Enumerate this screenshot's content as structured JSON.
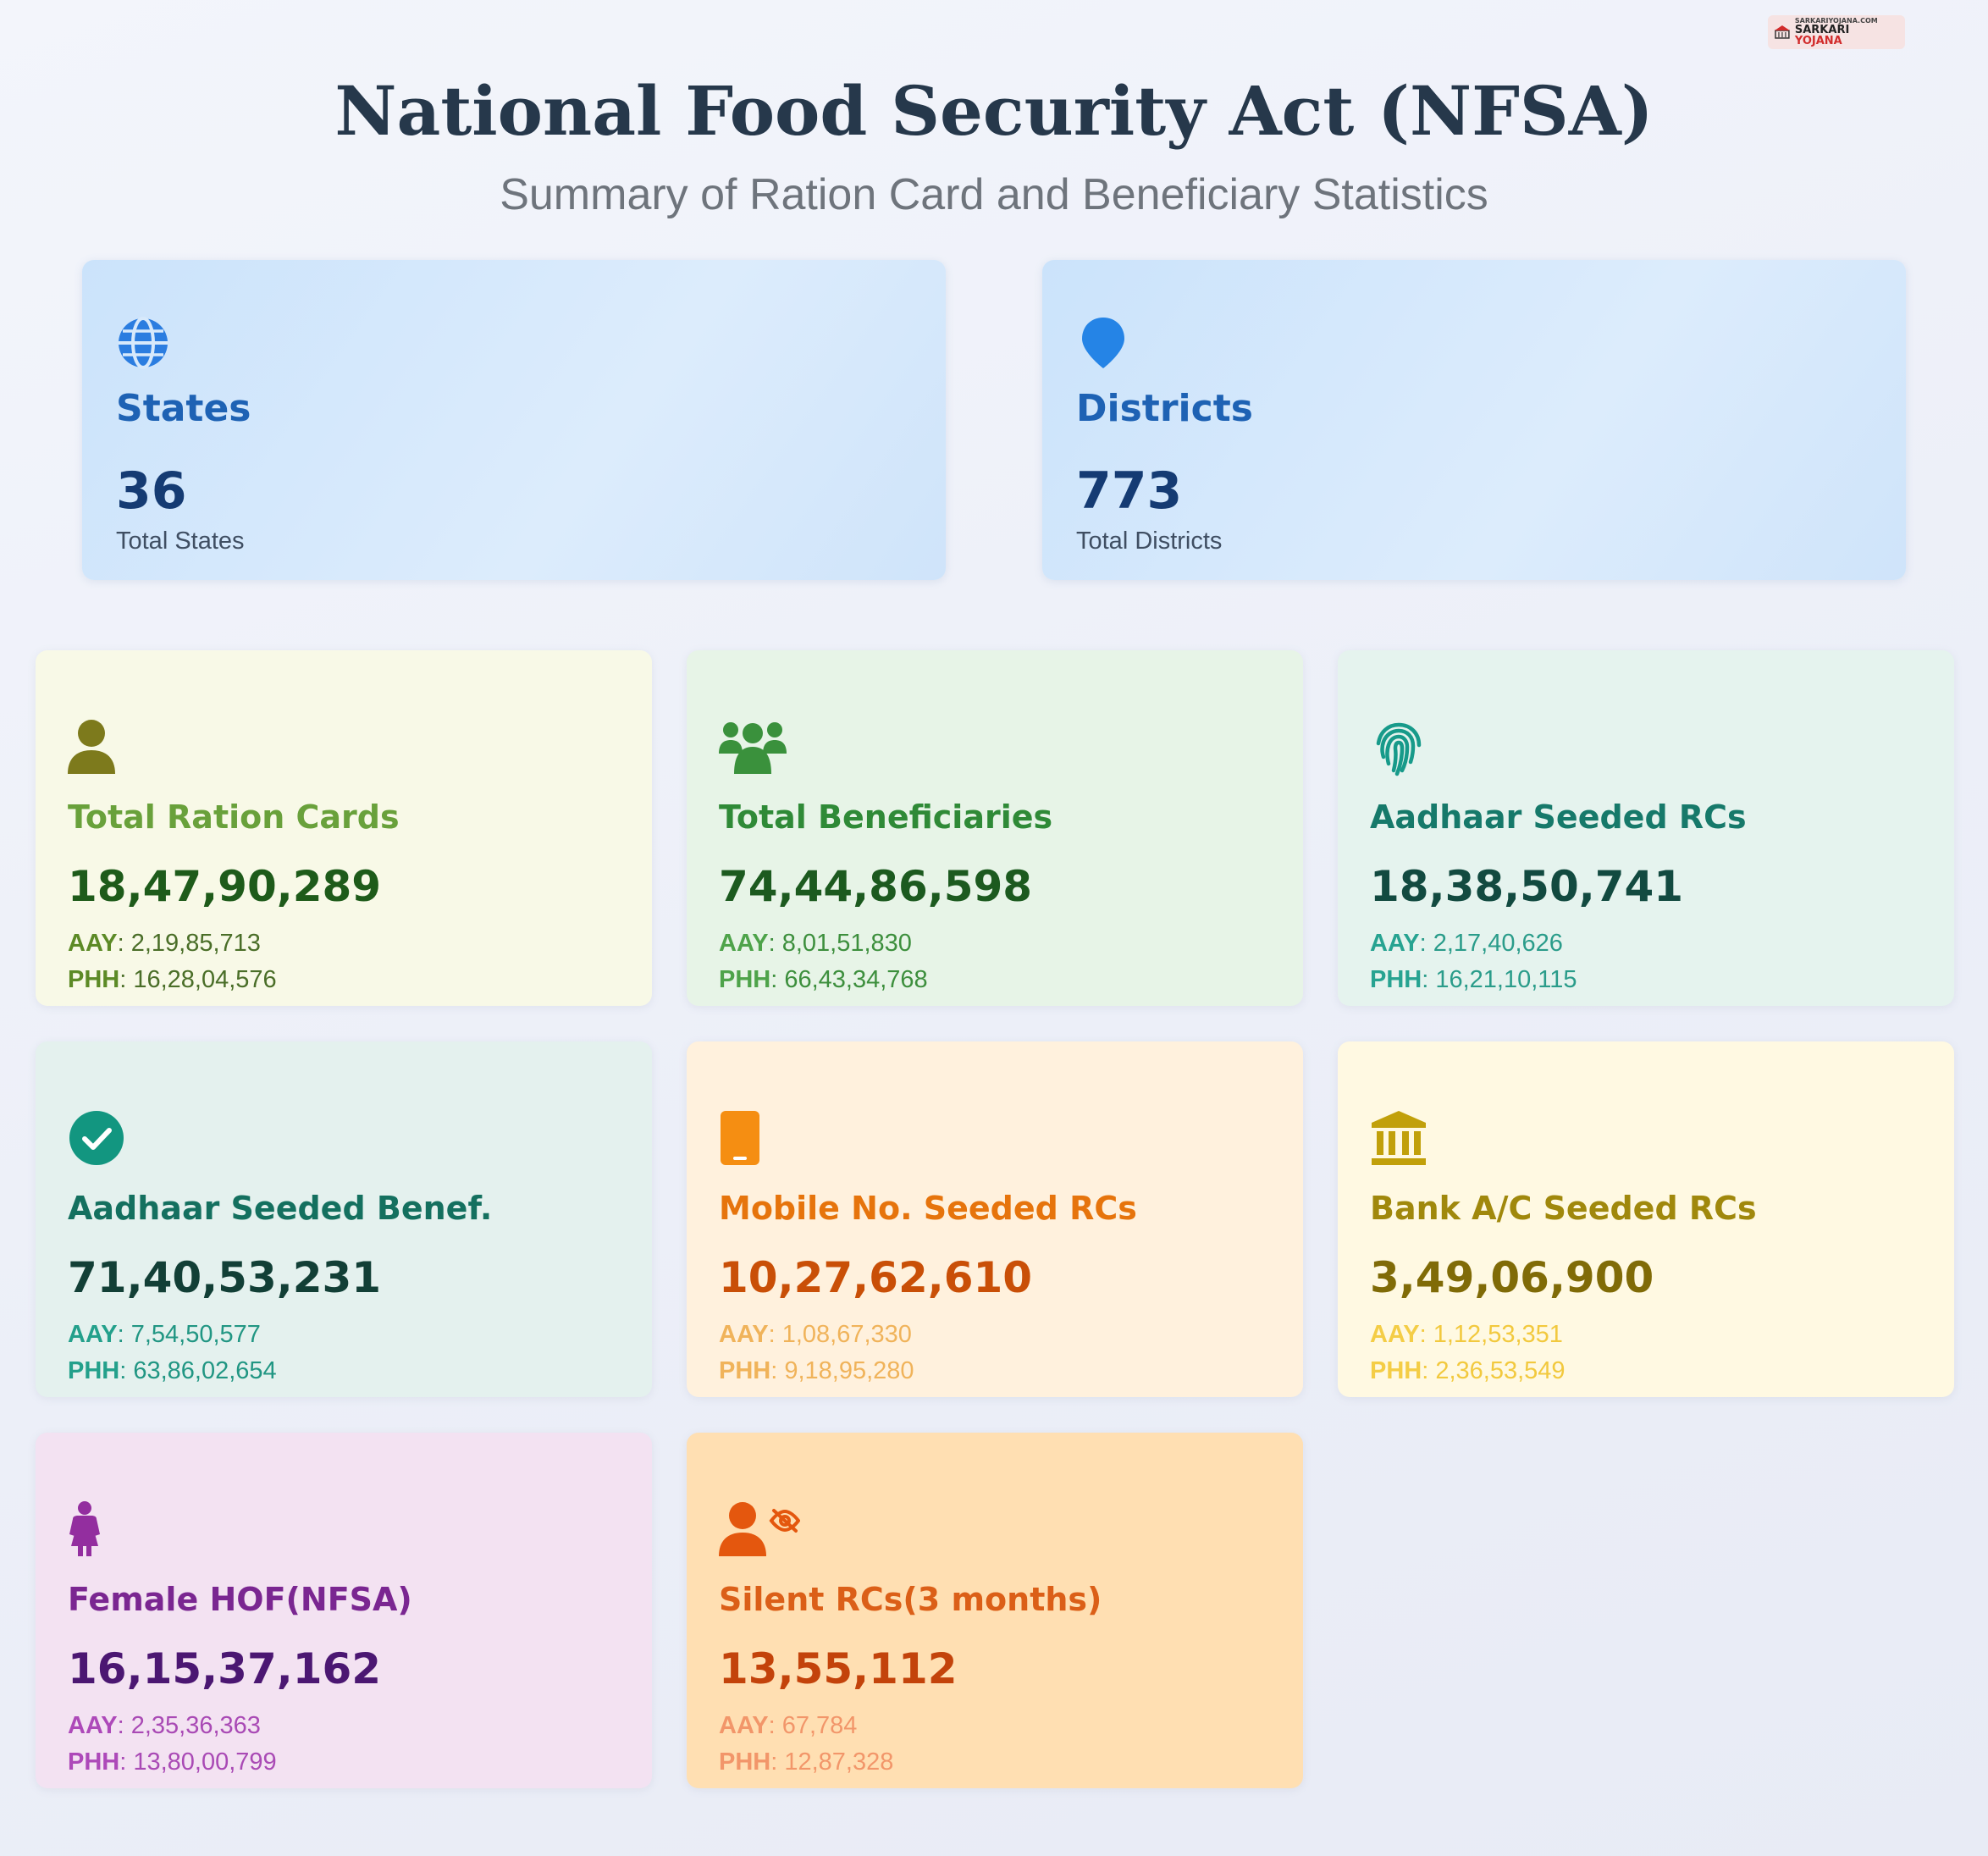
{
  "logo": {
    "small": "SARKARIYOJANA.COM",
    "brand_first": "SARKARI",
    "brand_second": "YOJANA"
  },
  "header": {
    "title": "National Food Security Act (NFSA)",
    "subtitle": "Summary of Ration Card and Beneficiary Statistics"
  },
  "summary": [
    {
      "label": "States",
      "value": "36",
      "caption": "Total States",
      "icon": "globe-icon"
    },
    {
      "label": "Districts",
      "value": "773",
      "caption": "Total Districts",
      "icon": "map-pin-icon"
    }
  ],
  "cards": [
    {
      "label": "Total Ration Cards",
      "value": "18,47,90,289",
      "aay_key": "AAY",
      "aay": "2,19,85,713",
      "phh_key": "PHH",
      "phh": "16,28,04,576",
      "icon": "user-icon",
      "colors": {
        "bg": "#f8f9e7",
        "icon": "#7d7a1c",
        "label": "#69a13b",
        "value": "#1e5b1a",
        "key": "#5c8a26",
        "num": "#4a6e28"
      }
    },
    {
      "label": "Total Beneficiaries",
      "value": "74,44,86,598",
      "aay_key": "AAY",
      "aay": "8,01,51,830",
      "phh_key": "PHH",
      "phh": "66,43,34,768",
      "icon": "users-group-icon",
      "colors": {
        "bg": "#e7f4e7",
        "icon": "#3a913c",
        "label": "#2f8a37",
        "value": "#1c5a1f",
        "key": "#4ea34a",
        "num": "#3d8f3d"
      }
    },
    {
      "label": "Aadhaar Seeded RCs",
      "value": "18,38,50,741",
      "aay_key": "AAY",
      "aay": "2,17,40,626",
      "phh_key": "PHH",
      "phh": "16,21,10,115",
      "icon": "fingerprint-icon",
      "colors": {
        "bg": "#e5f3ee",
        "icon": "#179a8a",
        "label": "#16796a",
        "value": "#124a40",
        "key": "#27a391",
        "num": "#2a9c8a"
      }
    },
    {
      "label": "Aadhaar Seeded Benef.",
      "value": "71,40,53,231",
      "aay_key": "AAY",
      "aay": "7,54,50,577",
      "phh_key": "PHH",
      "phh": "63,86,02,654",
      "icon": "check-circle-icon",
      "colors": {
        "bg": "#e4f1ee",
        "icon": "#129680",
        "label": "#14705f",
        "value": "#123f36",
        "key": "#23a08b",
        "num": "#219683"
      }
    },
    {
      "label": "Mobile No. Seeded RCs",
      "value": "10,27,62,610",
      "aay_key": "AAY",
      "aay": "1,08,67,330",
      "phh_key": "PHH",
      "phh": "9,18,95,280",
      "icon": "mobile-phone-icon",
      "colors": {
        "bg": "#fff1dd",
        "icon": "#f58e12",
        "label": "#e6740c",
        "value": "#c94f07",
        "key": "#f0b35a",
        "num": "#f0b35a"
      }
    },
    {
      "label": "Bank A/C Seeded RCs",
      "value": "3,49,06,900",
      "aay_key": "AAY",
      "aay": "1,12,53,351",
      "phh_key": "PHH",
      "phh": "2,36,53,549",
      "icon": "bank-icon",
      "colors": {
        "bg": "#fff9e2",
        "icon": "#c1a00a",
        "label": "#a0880c",
        "value": "#806b07",
        "key": "#f4cd46",
        "num": "#f2c93e"
      }
    },
    {
      "label": "Female HOF(NFSA)",
      "value": "16,15,37,162",
      "aay_key": "AAY",
      "aay": "2,35,36,363",
      "phh_key": "PHH",
      "phh": "13,80,00,799",
      "icon": "female-icon",
      "colors": {
        "bg": "#f3e2f2",
        "icon": "#932e9f",
        "label": "#7a2691",
        "value": "#4b1772",
        "key": "#ad49b9",
        "num": "#a94ab5"
      }
    },
    {
      "label": "Silent RCs(3 months)",
      "value": "13,55,112",
      "aay_key": "AAY",
      "aay": "67,784",
      "phh_key": "PHH",
      "phh": "12,87,328",
      "icon": "user-hidden-icon",
      "colors": {
        "bg": "#ffdfb2",
        "icon": "#e4570e",
        "label": "#db5f18",
        "value": "#c3430b",
        "key": "#f2966a",
        "num": "#f2966a"
      }
    }
  ]
}
